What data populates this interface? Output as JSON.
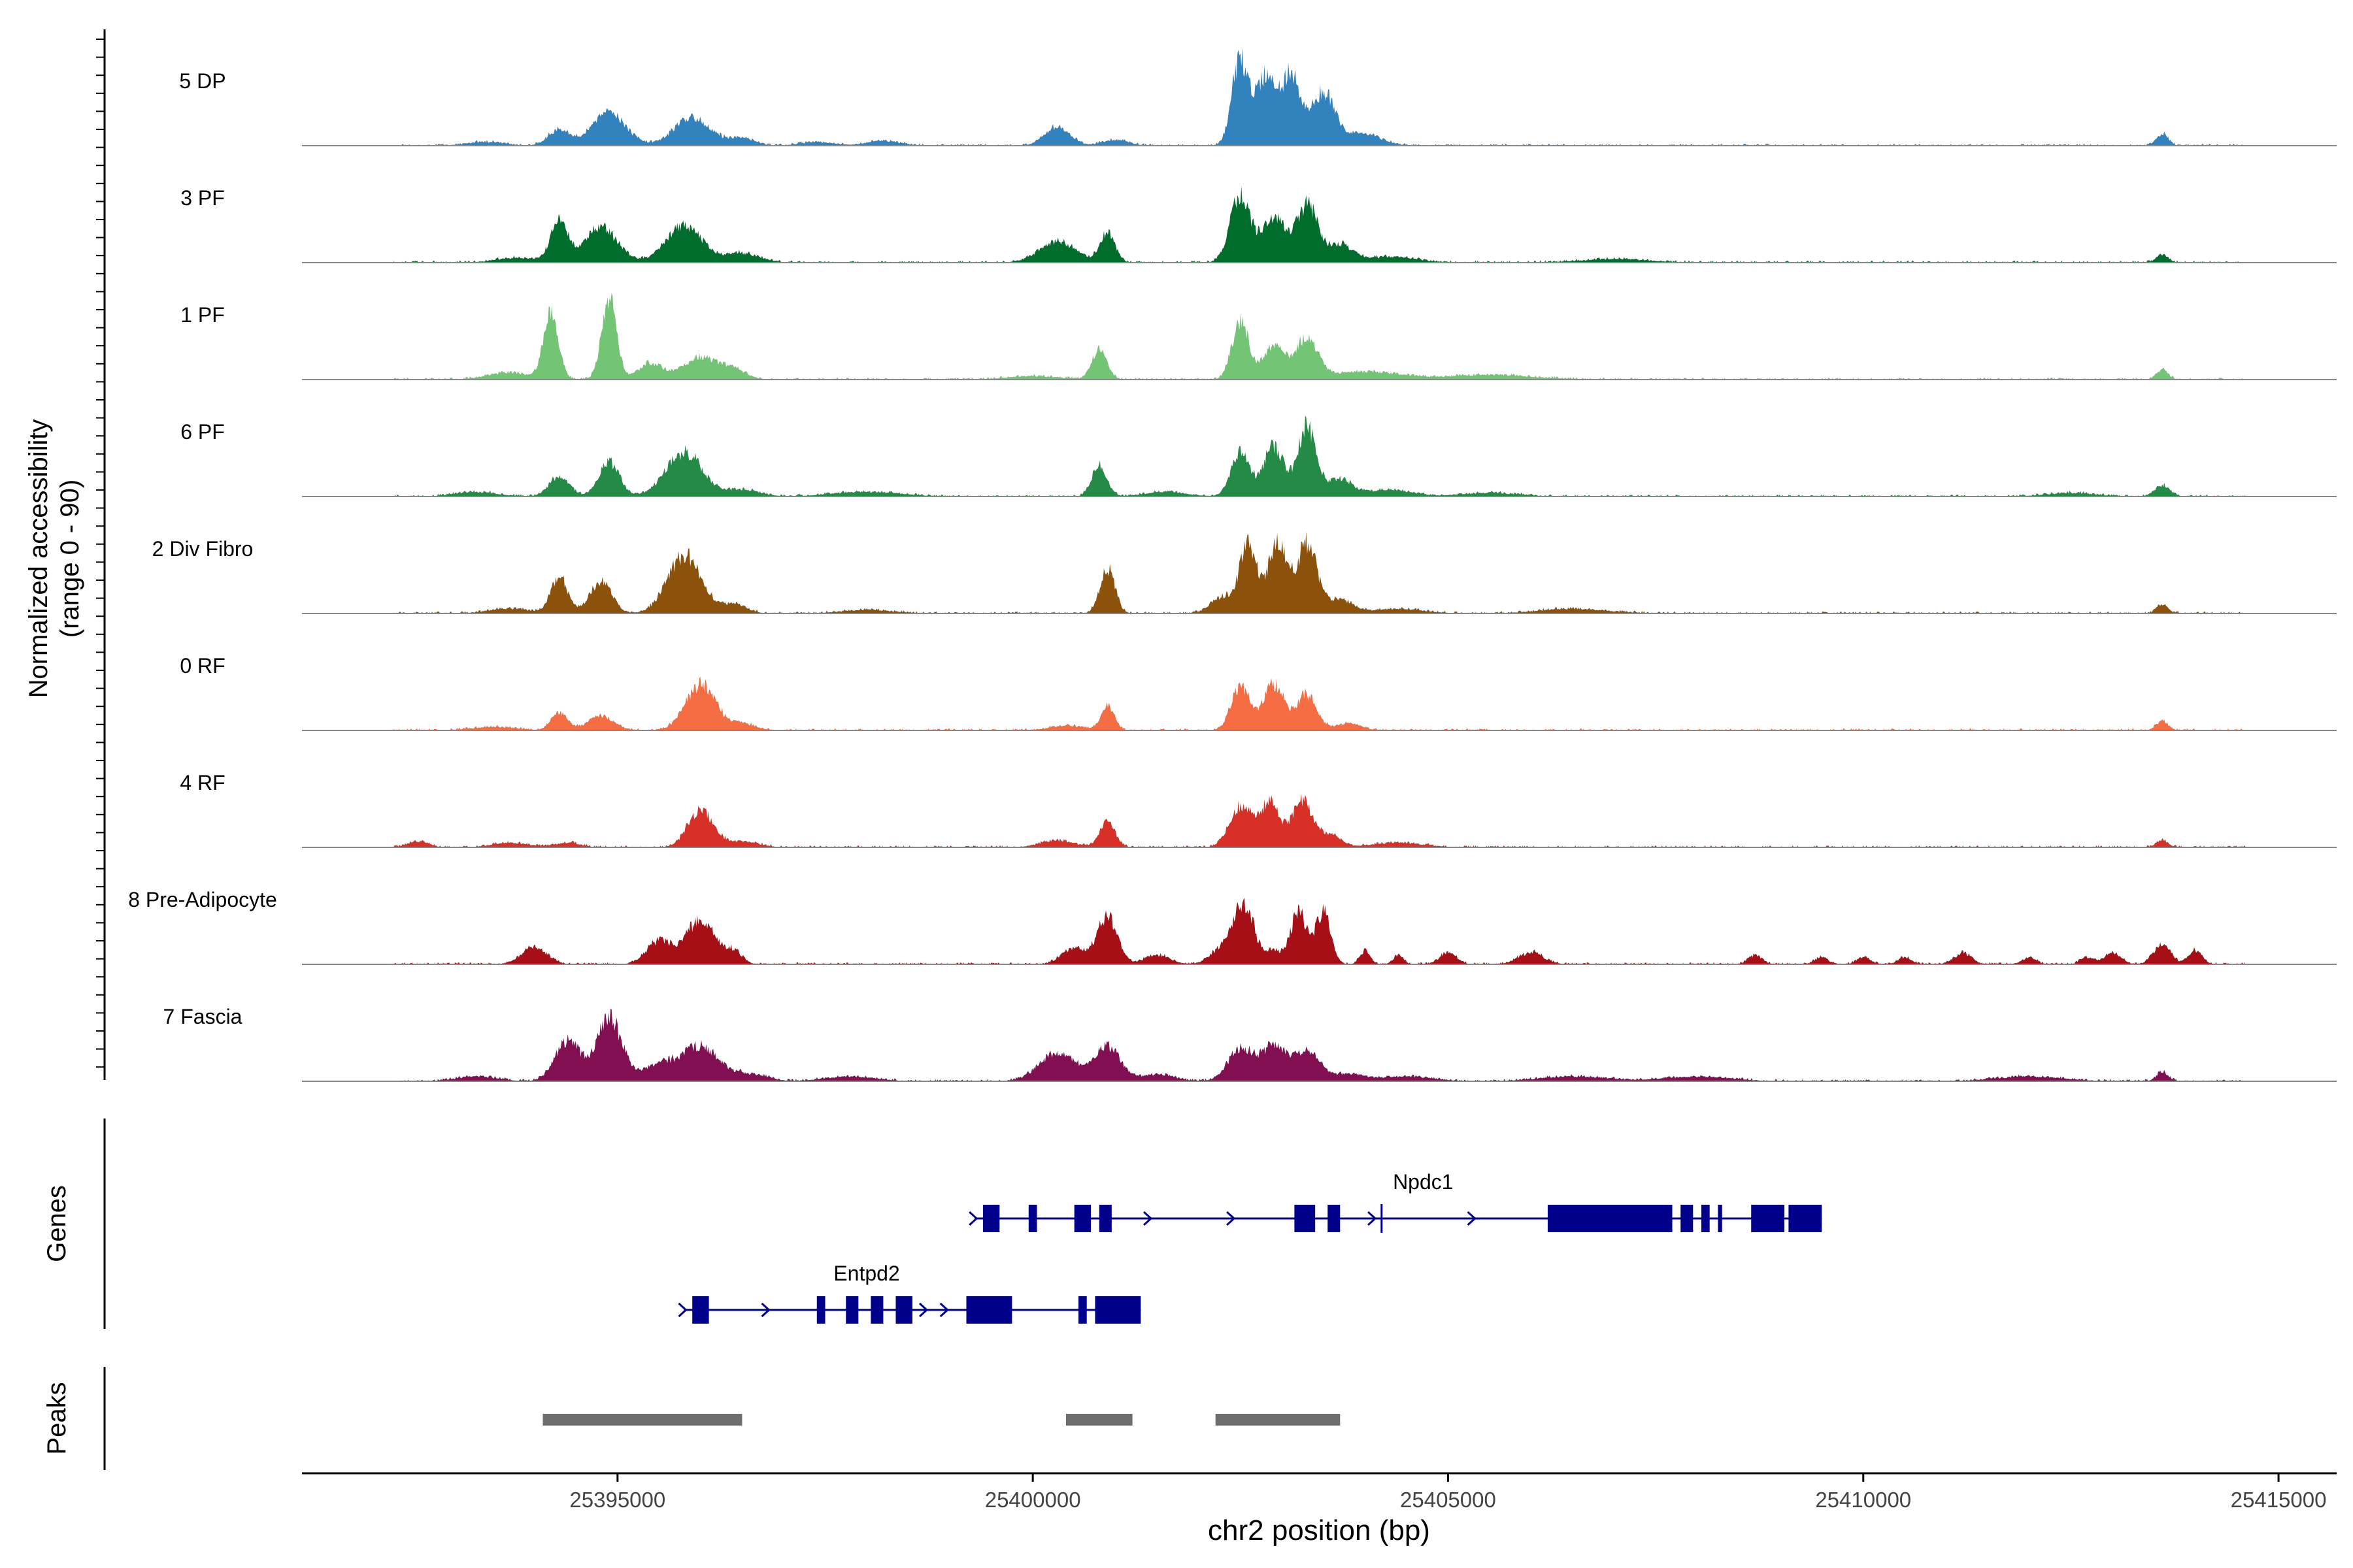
{
  "chart_data": {
    "type": "area",
    "title": "",
    "chromosome": "chr2",
    "xlabel": "chr2 position (bp)",
    "ylabel_line1": "Normalized accessibility",
    "ylabel_line2": "(range 0 - 90)",
    "ylim": [
      0,
      90
    ],
    "xlim": [
      25391200,
      25415700
    ],
    "x_ticks": [
      25395000,
      25400000,
      25405000,
      25410000,
      25415000
    ],
    "x_tick_labels": [
      "25395000",
      "25400000",
      "25405000",
      "25410000",
      "25415000"
    ],
    "signal_start": 25392300,
    "signal_end": 25414600,
    "tracks": [
      {
        "name": "5 DP",
        "color": "#3182BD",
        "peaks": [
          [
            25393400,
            3,
            220
          ],
          [
            25394300,
            14,
            130
          ],
          [
            25394900,
            28,
            200
          ],
          [
            25395900,
            24,
            220
          ],
          [
            25396500,
            6,
            150
          ],
          [
            25397400,
            3,
            200
          ],
          [
            25398200,
            4,
            200
          ],
          [
            25400300,
            16,
            150
          ],
          [
            25401000,
            5,
            150
          ],
          [
            25402500,
            75,
            100
          ],
          [
            25402800,
            58,
            110
          ],
          [
            25403100,
            60,
            120
          ],
          [
            25403500,
            45,
            150
          ],
          [
            25404000,
            10,
            200
          ],
          [
            25413600,
            10,
            70
          ]
        ]
      },
      {
        "name": "3 PF",
        "color": "#006D2C",
        "peaks": [
          [
            25393800,
            4,
            250
          ],
          [
            25394300,
            35,
            100
          ],
          [
            25394800,
            30,
            200
          ],
          [
            25395800,
            32,
            220
          ],
          [
            25396500,
            8,
            200
          ],
          [
            25400300,
            18,
            220
          ],
          [
            25400900,
            26,
            90
          ],
          [
            25402500,
            60,
            120
          ],
          [
            25402900,
            40,
            130
          ],
          [
            25403300,
            50,
            130
          ],
          [
            25403700,
            15,
            150
          ],
          [
            25404300,
            5,
            300
          ],
          [
            25407000,
            3,
            400
          ],
          [
            25413600,
            7,
            70
          ]
        ]
      },
      {
        "name": "1 PF",
        "color": "#74C476",
        "peaks": [
          [
            25393700,
            6,
            250
          ],
          [
            25394200,
            55,
            90
          ],
          [
            25394900,
            70,
            90
          ],
          [
            25395400,
            14,
            150
          ],
          [
            25396000,
            20,
            200
          ],
          [
            25396400,
            8,
            150
          ],
          [
            25400800,
            25,
            90
          ],
          [
            25400000,
            3,
            300
          ],
          [
            25402500,
            50,
            100
          ],
          [
            25402900,
            30,
            130
          ],
          [
            25403300,
            35,
            130
          ],
          [
            25404000,
            7,
            400
          ],
          [
            25405500,
            4,
            500
          ],
          [
            25413600,
            8,
            70
          ]
        ]
      },
      {
        "name": "6 PF",
        "color": "#238B45",
        "peaks": [
          [
            25393300,
            4,
            250
          ],
          [
            25394300,
            17,
            120
          ],
          [
            25394900,
            30,
            120
          ],
          [
            25395800,
            38,
            220
          ],
          [
            25396500,
            6,
            200
          ],
          [
            25398000,
            4,
            400
          ],
          [
            25400800,
            26,
            90
          ],
          [
            25401600,
            4,
            250
          ],
          [
            25402500,
            38,
            110
          ],
          [
            25402900,
            44,
            120
          ],
          [
            25403300,
            60,
            110
          ],
          [
            25403700,
            15,
            150
          ],
          [
            25404300,
            6,
            250
          ],
          [
            25405500,
            3,
            350
          ],
          [
            25413600,
            10,
            90
          ],
          [
            25412500,
            3,
            300
          ]
        ]
      },
      {
        "name": "2 Div Fibro",
        "color": "#8C510A",
        "peaks": [
          [
            25393700,
            4,
            250
          ],
          [
            25394300,
            32,
            100
          ],
          [
            25394800,
            28,
            130
          ],
          [
            25395800,
            50,
            200
          ],
          [
            25396400,
            8,
            150
          ],
          [
            25398000,
            3,
            300
          ],
          [
            25400900,
            38,
            90
          ],
          [
            25402300,
            14,
            150
          ],
          [
            25402600,
            60,
            100
          ],
          [
            25402950,
            62,
            110
          ],
          [
            25403300,
            60,
            120
          ],
          [
            25403700,
            12,
            150
          ],
          [
            25404400,
            4,
            300
          ],
          [
            25406500,
            4,
            400
          ],
          [
            25413600,
            8,
            70
          ]
        ]
      },
      {
        "name": "0 RF",
        "color": "#F46D43",
        "peaks": [
          [
            25393500,
            3,
            250
          ],
          [
            25394300,
            15,
            100
          ],
          [
            25394800,
            13,
            150
          ],
          [
            25396000,
            40,
            180
          ],
          [
            25396500,
            6,
            150
          ],
          [
            25400400,
            4,
            200
          ],
          [
            25400900,
            22,
            80
          ],
          [
            25402500,
            38,
            110
          ],
          [
            25402900,
            40,
            130
          ],
          [
            25403300,
            30,
            120
          ],
          [
            25403800,
            6,
            150
          ],
          [
            25413600,
            8,
            70
          ]
        ]
      },
      {
        "name": "4 RF",
        "color": "#D73027",
        "peaks": [
          [
            25392600,
            5,
            120
          ],
          [
            25393700,
            4,
            200
          ],
          [
            25394400,
            4,
            150
          ],
          [
            25396000,
            32,
            150
          ],
          [
            25396500,
            5,
            200
          ],
          [
            25400300,
            6,
            200
          ],
          [
            25400900,
            22,
            90
          ],
          [
            25402500,
            36,
            130
          ],
          [
            25402850,
            38,
            120
          ],
          [
            25403250,
            40,
            130
          ],
          [
            25403600,
            10,
            120
          ],
          [
            25404400,
            4,
            300
          ],
          [
            25413600,
            6,
            70
          ]
        ]
      },
      {
        "name": "8 Pre-Adipocyte",
        "color": "#A50F15",
        "peaks": [
          [
            25394000,
            15,
            150
          ],
          [
            25395500,
            20,
            150
          ],
          [
            25396000,
            38,
            180
          ],
          [
            25396400,
            10,
            100
          ],
          [
            25400500,
            14,
            150
          ],
          [
            25400900,
            40,
            120
          ],
          [
            25401500,
            8,
            150
          ],
          [
            25402300,
            14,
            150
          ],
          [
            25402550,
            50,
            120
          ],
          [
            25402900,
            12,
            80
          ],
          [
            25403200,
            45,
            100
          ],
          [
            25403500,
            45,
            90
          ],
          [
            25404000,
            12,
            60
          ],
          [
            25404400,
            8,
            60
          ],
          [
            25405000,
            10,
            100
          ],
          [
            25406000,
            10,
            150
          ],
          [
            25408700,
            8,
            80
          ],
          [
            25409500,
            6,
            80
          ],
          [
            25410000,
            6,
            80
          ],
          [
            25410500,
            6,
            80
          ],
          [
            25411200,
            10,
            100
          ],
          [
            25412000,
            6,
            80
          ],
          [
            25412700,
            6,
            80
          ],
          [
            25413000,
            10,
            100
          ],
          [
            25413600,
            18,
            100
          ],
          [
            25414000,
            12,
            80
          ]
        ]
      },
      {
        "name": "7 Fascia",
        "color": "#810F52",
        "peaks": [
          [
            25393300,
            4,
            250
          ],
          [
            25394400,
            35,
            150
          ],
          [
            25394900,
            55,
            150
          ],
          [
            25395500,
            14,
            200
          ],
          [
            25396000,
            30,
            220
          ],
          [
            25396600,
            6,
            200
          ],
          [
            25397800,
            4,
            300
          ],
          [
            25400300,
            24,
            220
          ],
          [
            25400900,
            30,
            150
          ],
          [
            25401500,
            6,
            200
          ],
          [
            25402500,
            28,
            150
          ],
          [
            25402900,
            30,
            150
          ],
          [
            25403300,
            25,
            150
          ],
          [
            25403800,
            6,
            200
          ],
          [
            25404500,
            4,
            300
          ],
          [
            25406500,
            4,
            400
          ],
          [
            25408000,
            4,
            400
          ],
          [
            25412000,
            4,
            400
          ],
          [
            25413600,
            8,
            70
          ]
        ]
      }
    ],
    "genes_label": "Genes",
    "genes": [
      {
        "name": "Npdc1",
        "label_x": 25404700,
        "start": 25399300,
        "end": 25409500,
        "exons": [
          [
            25399400,
            25399600
          ],
          [
            25399950,
            25400050
          ],
          [
            25400500,
            25400700
          ],
          [
            25400800,
            25400950
          ],
          [
            25403150,
            25403400
          ],
          [
            25403550,
            25403700
          ],
          [
            25406200,
            25407700
          ],
          [
            25407800,
            25407950
          ],
          [
            25408050,
            25408150
          ],
          [
            25408250,
            25408300
          ],
          [
            25408650,
            25409050
          ],
          [
            25409100,
            25409500
          ]
        ],
        "arrows": [
          25399300,
          25401400,
          25402400,
          25404100,
          25405300
        ]
      },
      {
        "name": "Entpd2",
        "label_x": 25398000,
        "start": 25395800,
        "end": 25401300,
        "exons": [
          [
            25395900,
            25396100
          ],
          [
            25397400,
            25397500
          ],
          [
            25397750,
            25397900
          ],
          [
            25398050,
            25398200
          ],
          [
            25398350,
            25398550
          ],
          [
            25399200,
            25399750
          ],
          [
            25400550,
            25400650
          ],
          [
            25400750,
            25401300
          ]
        ],
        "arrows": [
          25395800,
          25396800,
          25398700,
          25398950
        ]
      }
    ],
    "peaks_label": "Peaks",
    "peak_regions": [
      [
        25394100,
        25396500
      ],
      [
        25400400,
        25401200
      ],
      [
        25402200,
        25403700
      ]
    ]
  }
}
